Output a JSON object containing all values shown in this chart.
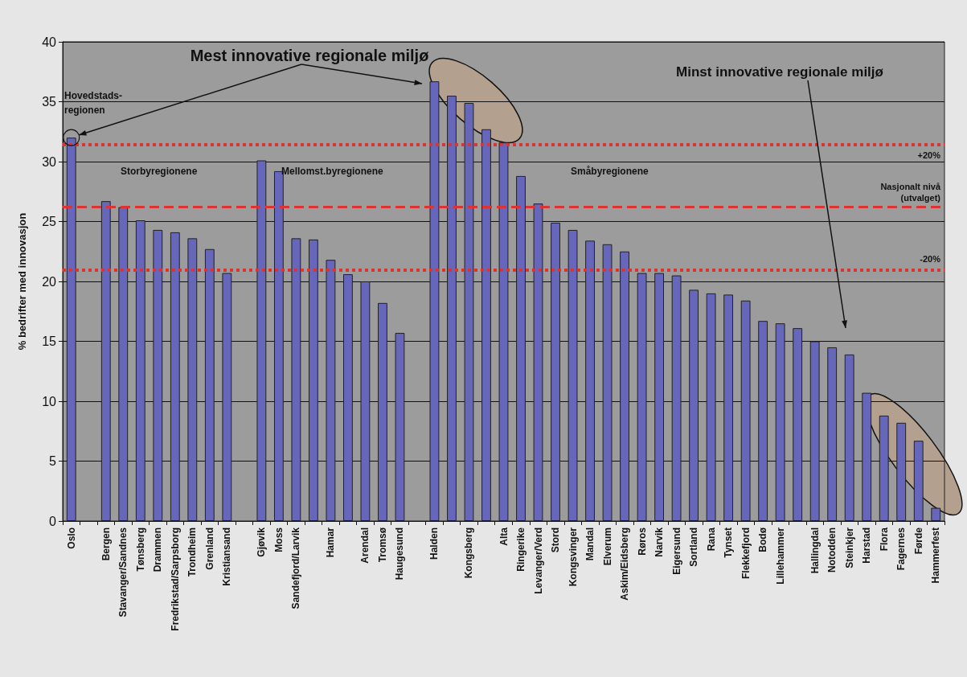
{
  "chart_data": {
    "type": "bar",
    "ylabel": "% bedrifter med innovasjon",
    "categories": [
      "Oslo",
      null,
      "Bergen",
      "Stavanger/Sandnes",
      "Tønsberg",
      "Drammen",
      "Fredrikstad/Sarpsborg",
      "Trondheim",
      "Grenland",
      "Kristiansand",
      null,
      "Gjøvik",
      "Moss",
      "Sandefjord/Larvik",
      null,
      "Hamar",
      null,
      "Arendal",
      "Tromsø",
      "Haugesund",
      null,
      "Halden",
      null,
      "Kongsberg",
      null,
      "Alta",
      "Ringerike",
      "Levanger/Verd",
      "Stord",
      "Kongsvinger",
      "Mandal",
      "Elverum",
      "Askim/Eidsberg",
      "Røros",
      "Narvik",
      "Eigersund",
      "Sortland",
      "Rana",
      "Tynset",
      "Flekkefjord",
      "Bodø",
      "Lillehammer",
      null,
      "Hallingdal",
      "Notodden",
      "Steinkjer",
      "Harstad",
      "Flora",
      "Fagernes",
      "Førde",
      "Hammerfest"
    ],
    "values": [
      32.0,
      null,
      26.7,
      26.2,
      25.1,
      24.3,
      24.1,
      23.6,
      22.7,
      20.7,
      null,
      30.1,
      29.2,
      23.6,
      23.5,
      21.8,
      20.6,
      20.0,
      18.2,
      15.7,
      null,
      36.7,
      35.5,
      34.9,
      32.7,
      31.6,
      28.8,
      26.5,
      24.9,
      24.3,
      23.4,
      23.1,
      22.5,
      20.7,
      20.7,
      20.5,
      19.3,
      19.0,
      18.9,
      18.4,
      16.7,
      16.5,
      16.1,
      15.0,
      14.5,
      13.9,
      10.7,
      8.8,
      8.2,
      6.7,
      1.1
    ],
    "color": "#6666bb",
    "ylim": [
      0,
      40
    ],
    "yticks": [
      0,
      5,
      10,
      15,
      20,
      25,
      30,
      35,
      40
    ],
    "grid": "y",
    "ref_lines": [
      {
        "axis": "y",
        "value": 31.44,
        "color": "#dd3333",
        "line_style": "dotted"
      },
      {
        "axis": "y",
        "value": 26.2,
        "label": "Nasjonalt nivå\n(utvalget)",
        "color": "#dd3333",
        "line_style": "dashed"
      },
      {
        "axis": "y",
        "value": 20.96,
        "color": "#dd3333",
        "line_style": "dotted"
      }
    ],
    "annotations": [
      "Mest innovative regionale miljø",
      "Hovedstads-\nregionen",
      "Storbyregionene",
      "Mellomst.byregionene",
      "Småbyregionene",
      "Minst innovative regionale miljø",
      "+20%",
      "-20%"
    ]
  }
}
